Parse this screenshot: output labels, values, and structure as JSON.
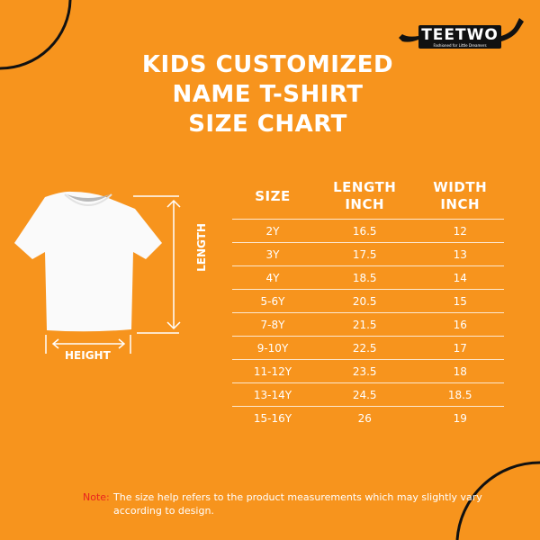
{
  "brand": {
    "logo_text": "TEETWO",
    "tagline": "Fashioned for Little Dreamers"
  },
  "title": [
    "KIDS CUSTOMIZED",
    "NAME T-SHIRT",
    "SIZE CHART"
  ],
  "diagram": {
    "length_label": "LENGTH",
    "height_label": "HEIGHT"
  },
  "table": {
    "headers": [
      [
        "SIZE"
      ],
      [
        "LENGTH",
        "INCH"
      ],
      [
        "WIDTH",
        "INCH"
      ]
    ],
    "rows": [
      [
        "2Y",
        "16.5",
        "12"
      ],
      [
        "3Y",
        "17.5",
        "13"
      ],
      [
        "4Y",
        "18.5",
        "14"
      ],
      [
        "5-6Y",
        "20.5",
        "15"
      ],
      [
        "7-8Y",
        "21.5",
        "16"
      ],
      [
        "9-10Y",
        "22.5",
        "17"
      ],
      [
        "11-12Y",
        "23.5",
        "18"
      ],
      [
        "13-14Y",
        "24.5",
        "18.5"
      ],
      [
        "15-16Y",
        "26",
        "19"
      ]
    ]
  },
  "note": {
    "label": "Note:",
    "text": "The size help refers to the product measurements which may slightly vary according to design."
  },
  "colors": {
    "background": "#F7941D",
    "note_label": "#E8231E",
    "arc": "#111111"
  }
}
